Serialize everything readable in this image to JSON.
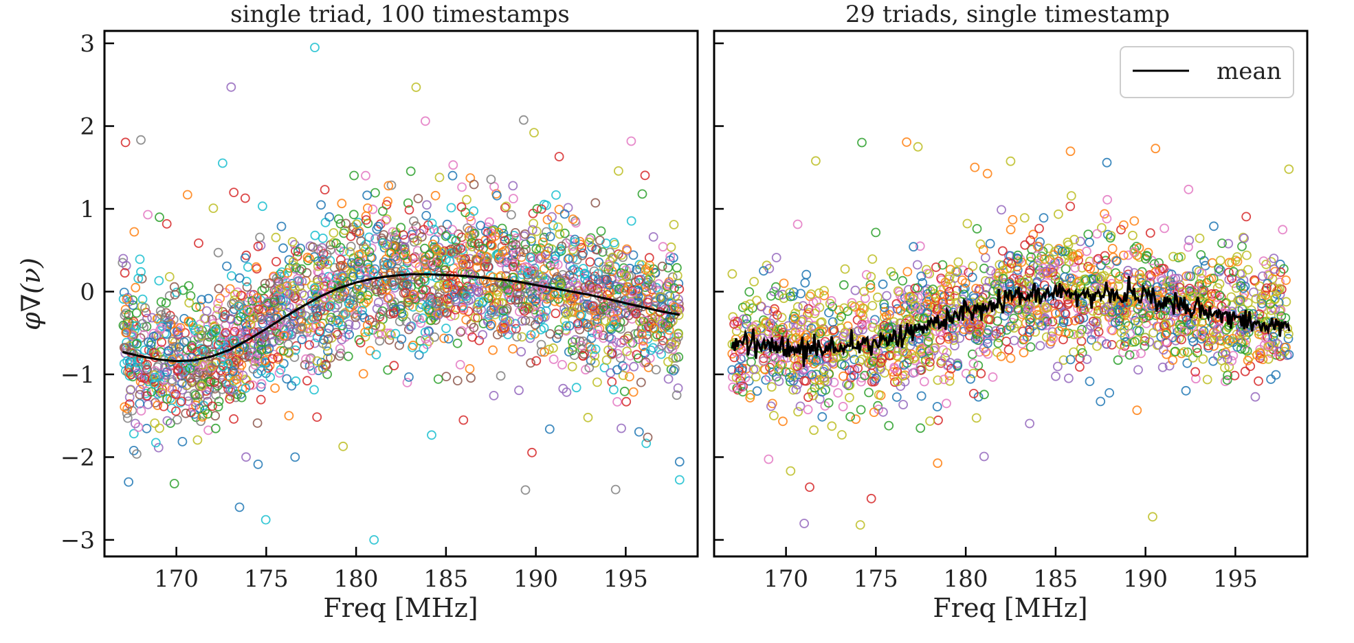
{
  "figure": {
    "ylabel": "φ∇(ν)",
    "colors": [
      "#1f77b4",
      "#ff7f0e",
      "#2ca02c",
      "#d62728",
      "#9467bd",
      "#8c564b",
      "#e377c2",
      "#7f7f7f",
      "#bcbd22",
      "#17becf"
    ],
    "colors_right": [
      "#1f77b4",
      "#ff7f0e",
      "#2ca02c",
      "#d62728",
      "#9467bd",
      "#bcbd22",
      "#e377c2",
      "#bcbd22"
    ],
    "mean_color": "#000000",
    "marker": "open-circle"
  },
  "chart_data": [
    {
      "type": "scatter",
      "title": "single triad, 100 timestamps",
      "xlabel": "Freq [MHz]",
      "ylabel": "φ∇(ν)",
      "xlim": [
        166,
        199
      ],
      "ylim": [
        -3.2,
        3.15
      ],
      "xticks": [
        170,
        175,
        180,
        185,
        190,
        195
      ],
      "xtick_labels": [
        "170",
        "175",
        "180",
        "185",
        "190",
        "195"
      ],
      "yticks": [
        -3,
        -2,
        -1,
        0,
        1,
        2,
        3
      ],
      "ytick_labels": [
        "−3",
        "−2",
        "−1",
        "0",
        "1",
        "2",
        "3"
      ],
      "series_count": 100,
      "x_range_data": [
        167.0,
        198.0
      ],
      "scatter_spread": 0.42,
      "mean": {
        "x": [
          167,
          168,
          169,
          170,
          171,
          172,
          173,
          174,
          175,
          176,
          177,
          178,
          179,
          180,
          181,
          182,
          183,
          184,
          185,
          186,
          187,
          188,
          189,
          190,
          191,
          192,
          193,
          194,
          195,
          196,
          197,
          198
        ],
        "y": [
          -0.73,
          -0.78,
          -0.82,
          -0.84,
          -0.83,
          -0.78,
          -0.7,
          -0.58,
          -0.45,
          -0.31,
          -0.18,
          -0.06,
          0.04,
          0.11,
          0.16,
          0.19,
          0.21,
          0.21,
          0.2,
          0.19,
          0.17,
          0.15,
          0.12,
          0.08,
          0.04,
          0.0,
          -0.04,
          -0.09,
          -0.14,
          -0.19,
          -0.24,
          -0.28
        ]
      },
      "grid": false,
      "legend": null
    },
    {
      "type": "scatter",
      "title": "29 triads, single timestamp",
      "xlabel": "Freq [MHz]",
      "xlim": [
        166,
        199
      ],
      "ylim": [
        -3.2,
        3.15
      ],
      "xticks": [
        170,
        175,
        180,
        185,
        190,
        195
      ],
      "xtick_labels": [
        "170",
        "175",
        "180",
        "185",
        "190",
        "195"
      ],
      "yticks": [
        -3,
        -2,
        -1,
        0,
        1,
        2,
        3
      ],
      "ytick_labels": [],
      "series_count": 29,
      "x_range_data": [
        167.0,
        198.0
      ],
      "scatter_spread": 0.36,
      "mean": {
        "x": [
          167,
          168,
          169,
          170,
          171,
          172,
          173,
          174,
          175,
          176,
          177,
          178,
          179,
          180,
          181,
          182,
          183,
          184,
          185,
          186,
          187,
          188,
          189,
          190,
          191,
          192,
          193,
          194,
          195,
          196,
          197,
          198
        ],
        "y": [
          -0.62,
          -0.64,
          -0.66,
          -0.67,
          -0.69,
          -0.7,
          -0.68,
          -0.66,
          -0.62,
          -0.55,
          -0.48,
          -0.41,
          -0.33,
          -0.26,
          -0.19,
          -0.12,
          -0.07,
          -0.03,
          -0.01,
          -0.02,
          -0.04,
          -0.06,
          -0.05,
          -0.08,
          -0.12,
          -0.17,
          -0.22,
          -0.27,
          -0.31,
          -0.35,
          -0.38,
          -0.41
        ]
      },
      "mean_noise": 0.12,
      "grid": false,
      "legend": {
        "label": "mean",
        "location": "upper right"
      }
    }
  ]
}
